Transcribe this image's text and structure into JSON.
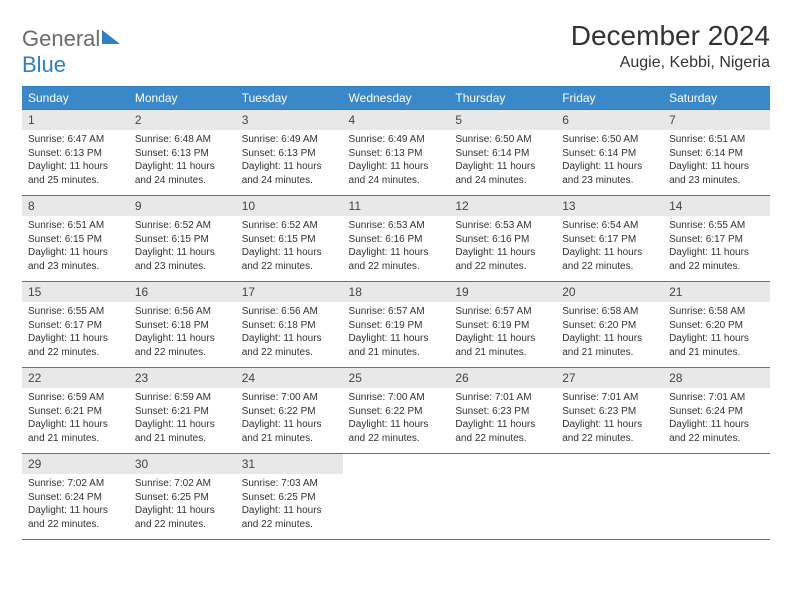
{
  "logo": {
    "text1": "General",
    "text2": "Blue"
  },
  "title": "December 2024",
  "location": "Augie, Kebbi, Nigeria",
  "colors": {
    "header_bg": "#3a88c8",
    "border": "#2f7fc2",
    "daynum_bg": "#e8e8e8",
    "text": "#333333",
    "logo_gray": "#6b6b6b",
    "logo_blue": "#2f7fc2",
    "background": "#ffffff"
  },
  "typography": {
    "title_fontsize": 28,
    "location_fontsize": 16,
    "header_fontsize": 12,
    "daynum_fontsize": 12,
    "body_fontsize": 10
  },
  "day_headers": [
    "Sunday",
    "Monday",
    "Tuesday",
    "Wednesday",
    "Thursday",
    "Friday",
    "Saturday"
  ],
  "weeks": [
    [
      {
        "n": "1",
        "sunrise": "6:47 AM",
        "sunset": "6:13 PM",
        "daylight": "11 hours and 25 minutes."
      },
      {
        "n": "2",
        "sunrise": "6:48 AM",
        "sunset": "6:13 PM",
        "daylight": "11 hours and 24 minutes."
      },
      {
        "n": "3",
        "sunrise": "6:49 AM",
        "sunset": "6:13 PM",
        "daylight": "11 hours and 24 minutes."
      },
      {
        "n": "4",
        "sunrise": "6:49 AM",
        "sunset": "6:13 PM",
        "daylight": "11 hours and 24 minutes."
      },
      {
        "n": "5",
        "sunrise": "6:50 AM",
        "sunset": "6:14 PM",
        "daylight": "11 hours and 24 minutes."
      },
      {
        "n": "6",
        "sunrise": "6:50 AM",
        "sunset": "6:14 PM",
        "daylight": "11 hours and 23 minutes."
      },
      {
        "n": "7",
        "sunrise": "6:51 AM",
        "sunset": "6:14 PM",
        "daylight": "11 hours and 23 minutes."
      }
    ],
    [
      {
        "n": "8",
        "sunrise": "6:51 AM",
        "sunset": "6:15 PM",
        "daylight": "11 hours and 23 minutes."
      },
      {
        "n": "9",
        "sunrise": "6:52 AM",
        "sunset": "6:15 PM",
        "daylight": "11 hours and 23 minutes."
      },
      {
        "n": "10",
        "sunrise": "6:52 AM",
        "sunset": "6:15 PM",
        "daylight": "11 hours and 22 minutes."
      },
      {
        "n": "11",
        "sunrise": "6:53 AM",
        "sunset": "6:16 PM",
        "daylight": "11 hours and 22 minutes."
      },
      {
        "n": "12",
        "sunrise": "6:53 AM",
        "sunset": "6:16 PM",
        "daylight": "11 hours and 22 minutes."
      },
      {
        "n": "13",
        "sunrise": "6:54 AM",
        "sunset": "6:17 PM",
        "daylight": "11 hours and 22 minutes."
      },
      {
        "n": "14",
        "sunrise": "6:55 AM",
        "sunset": "6:17 PM",
        "daylight": "11 hours and 22 minutes."
      }
    ],
    [
      {
        "n": "15",
        "sunrise": "6:55 AM",
        "sunset": "6:17 PM",
        "daylight": "11 hours and 22 minutes."
      },
      {
        "n": "16",
        "sunrise": "6:56 AM",
        "sunset": "6:18 PM",
        "daylight": "11 hours and 22 minutes."
      },
      {
        "n": "17",
        "sunrise": "6:56 AM",
        "sunset": "6:18 PM",
        "daylight": "11 hours and 22 minutes."
      },
      {
        "n": "18",
        "sunrise": "6:57 AM",
        "sunset": "6:19 PM",
        "daylight": "11 hours and 21 minutes."
      },
      {
        "n": "19",
        "sunrise": "6:57 AM",
        "sunset": "6:19 PM",
        "daylight": "11 hours and 21 minutes."
      },
      {
        "n": "20",
        "sunrise": "6:58 AM",
        "sunset": "6:20 PM",
        "daylight": "11 hours and 21 minutes."
      },
      {
        "n": "21",
        "sunrise": "6:58 AM",
        "sunset": "6:20 PM",
        "daylight": "11 hours and 21 minutes."
      }
    ],
    [
      {
        "n": "22",
        "sunrise": "6:59 AM",
        "sunset": "6:21 PM",
        "daylight": "11 hours and 21 minutes."
      },
      {
        "n": "23",
        "sunrise": "6:59 AM",
        "sunset": "6:21 PM",
        "daylight": "11 hours and 21 minutes."
      },
      {
        "n": "24",
        "sunrise": "7:00 AM",
        "sunset": "6:22 PM",
        "daylight": "11 hours and 21 minutes."
      },
      {
        "n": "25",
        "sunrise": "7:00 AM",
        "sunset": "6:22 PM",
        "daylight": "11 hours and 22 minutes."
      },
      {
        "n": "26",
        "sunrise": "7:01 AM",
        "sunset": "6:23 PM",
        "daylight": "11 hours and 22 minutes."
      },
      {
        "n": "27",
        "sunrise": "7:01 AM",
        "sunset": "6:23 PM",
        "daylight": "11 hours and 22 minutes."
      },
      {
        "n": "28",
        "sunrise": "7:01 AM",
        "sunset": "6:24 PM",
        "daylight": "11 hours and 22 minutes."
      }
    ],
    [
      {
        "n": "29",
        "sunrise": "7:02 AM",
        "sunset": "6:24 PM",
        "daylight": "11 hours and 22 minutes."
      },
      {
        "n": "30",
        "sunrise": "7:02 AM",
        "sunset": "6:25 PM",
        "daylight": "11 hours and 22 minutes."
      },
      {
        "n": "31",
        "sunrise": "7:03 AM",
        "sunset": "6:25 PM",
        "daylight": "11 hours and 22 minutes."
      },
      null,
      null,
      null,
      null
    ]
  ],
  "labels": {
    "sunrise": "Sunrise: ",
    "sunset": "Sunset: ",
    "daylight": "Daylight: "
  }
}
